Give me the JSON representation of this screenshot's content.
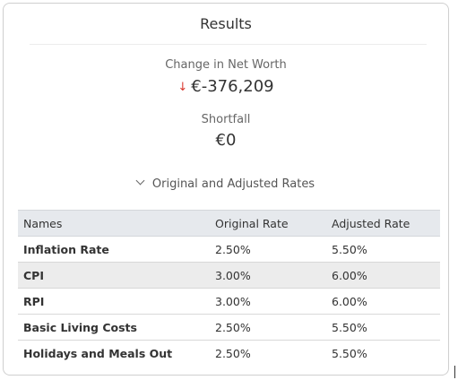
{
  "results": {
    "title": "Results",
    "net_worth": {
      "label": "Change in Net Worth",
      "direction_icon": "arrow-down-icon",
      "value": "€-376,209",
      "color": "#d9352b"
    },
    "shortfall": {
      "label": "Shortfall",
      "value": "€0"
    },
    "rates_toggle": {
      "label": "Original and Adjusted Rates",
      "icon": "chevron-down-icon"
    },
    "table": {
      "headers": [
        "Names",
        "Original Rate",
        "Adjusted Rate"
      ],
      "rows": [
        {
          "name": "Inflation Rate",
          "original": "2.50%",
          "adjusted": "5.50%"
        },
        {
          "name": "CPI",
          "original": "3.00%",
          "adjusted": "6.00%"
        },
        {
          "name": "RPI",
          "original": "3.00%",
          "adjusted": "6.00%"
        },
        {
          "name": "Basic Living Costs",
          "original": "2.50%",
          "adjusted": "5.50%"
        },
        {
          "name": "Holidays and Meals Out",
          "original": "2.50%",
          "adjusted": "5.50%"
        }
      ]
    }
  }
}
